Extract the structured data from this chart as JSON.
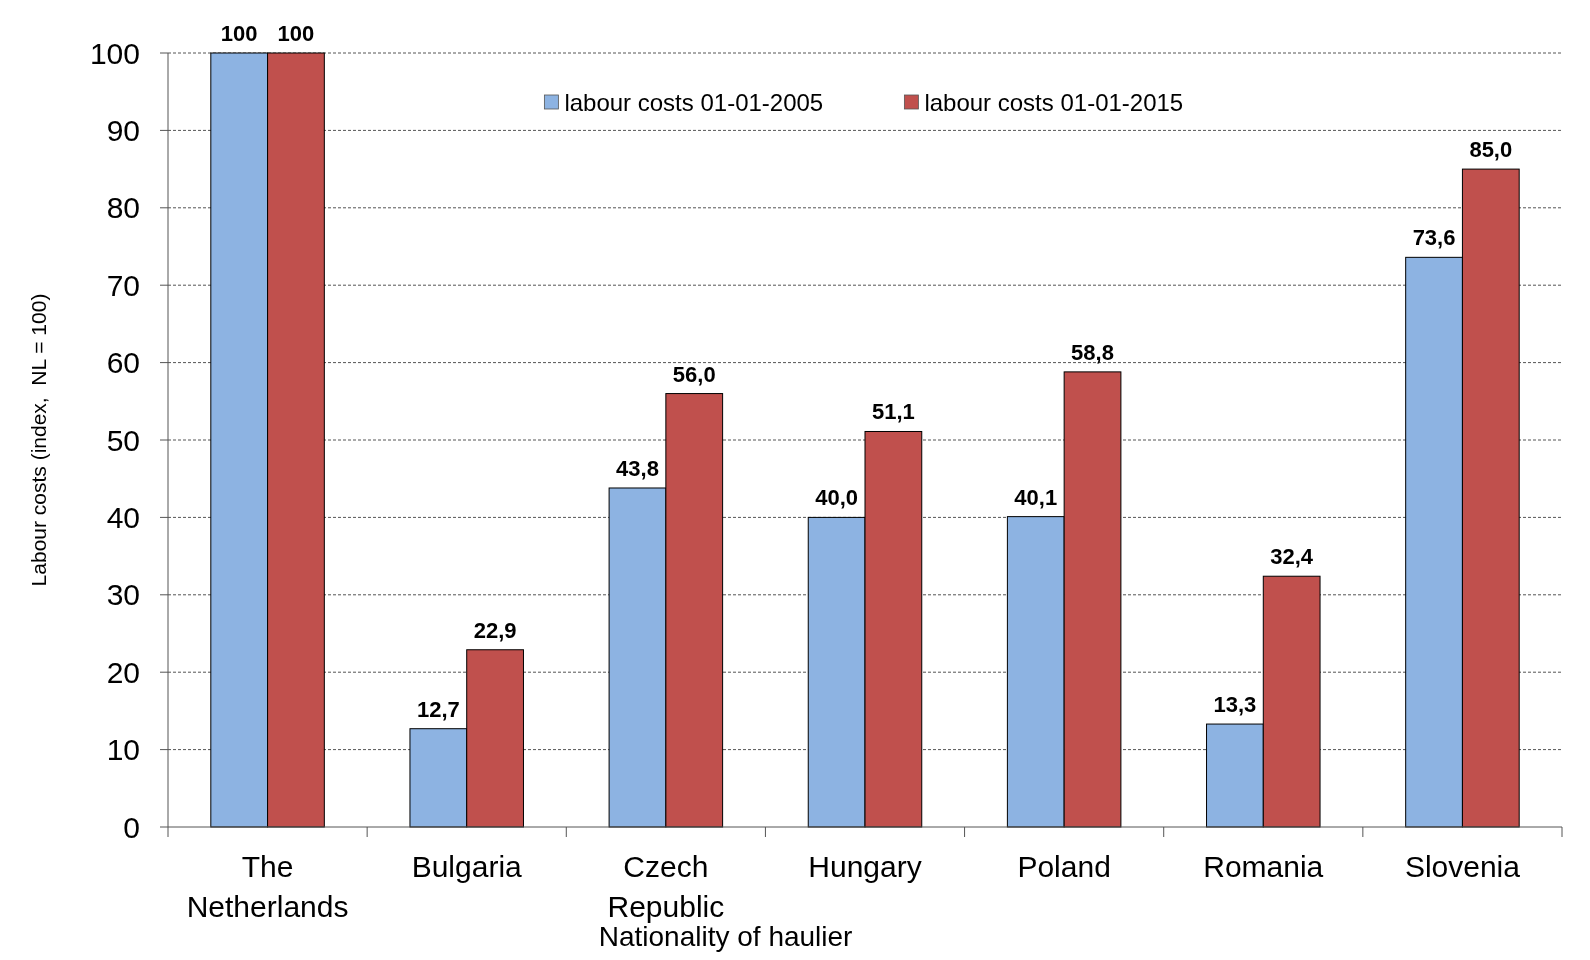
{
  "chart_data": {
    "type": "bar",
    "xlabel": "Nationality of haulier",
    "ylabel": "Labour costs (index,  NL = 100)",
    "categories": [
      "The Netherlands",
      "Bulgaria",
      "Czech Republic",
      "Hungary",
      "Poland",
      "Romania",
      "Slovenia"
    ],
    "series": [
      {
        "name": "labour costs 01-01-2005",
        "color": "#8db3e2",
        "values": [
          100,
          12.7,
          43.8,
          40.0,
          40.1,
          13.3,
          73.6
        ],
        "value_labels": [
          "100",
          "12,7",
          "43,8",
          "40,0",
          "40,1",
          "13,3",
          "73,6"
        ]
      },
      {
        "name": "labour costs 01-01-2015",
        "color": "#c0504d",
        "values": [
          100,
          22.9,
          56.0,
          51.1,
          58.8,
          32.4,
          85.0
        ],
        "value_labels": [
          "100",
          "22,9",
          "56,0",
          "51,1",
          "58,8",
          "32,4",
          "85,0"
        ]
      }
    ],
    "ylim": [
      0,
      100
    ],
    "yticks": [
      0,
      10,
      20,
      30,
      40,
      50,
      60,
      70,
      80,
      90,
      100
    ],
    "grid": "y",
    "legend": "top"
  }
}
